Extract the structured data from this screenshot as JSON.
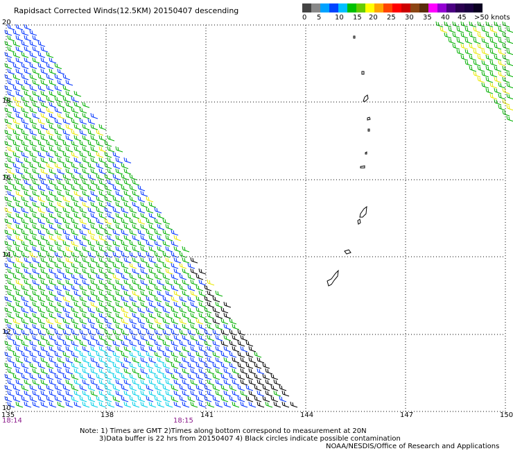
{
  "title": "Rapidsact Corrected Winds(12.5KM) 20150407 descending",
  "legend": {
    "colors": [
      "#444444",
      "#888888",
      "#00a2ff",
      "#0044ff",
      "#00bfff",
      "#00c000",
      "#66cc00",
      "#ffff00",
      "#ffa500",
      "#ff4500",
      "#ff0000",
      "#cc0000",
      "#8b4513",
      "#5a2d0c",
      "#ff00ff",
      "#9400d3",
      "#4b0082",
      "#2a0050",
      "#1a0040",
      "#0a0020"
    ],
    "labels": [
      "0",
      "5",
      "10",
      "15",
      "20",
      "25",
      "30",
      "35",
      "40",
      "45",
      ">50 knots"
    ]
  },
  "map": {
    "lat_labels": [
      "20",
      "18",
      "16",
      "14",
      "12",
      "10"
    ],
    "lon_labels": [
      "135",
      "138",
      "141",
      "144",
      "147",
      "150"
    ],
    "time_labels": [
      "18:14",
      "18:15"
    ]
  },
  "notes": {
    "line1": "Note: 1) Times are GMT 2)Times along bottom correspond to measurement at 20N",
    "line2": "3)Data buffer is 22 hrs from 20150407 4) Black circles indicate possible contamination",
    "credit": "NOAA/NESDIS/Office of Research and Applications"
  }
}
